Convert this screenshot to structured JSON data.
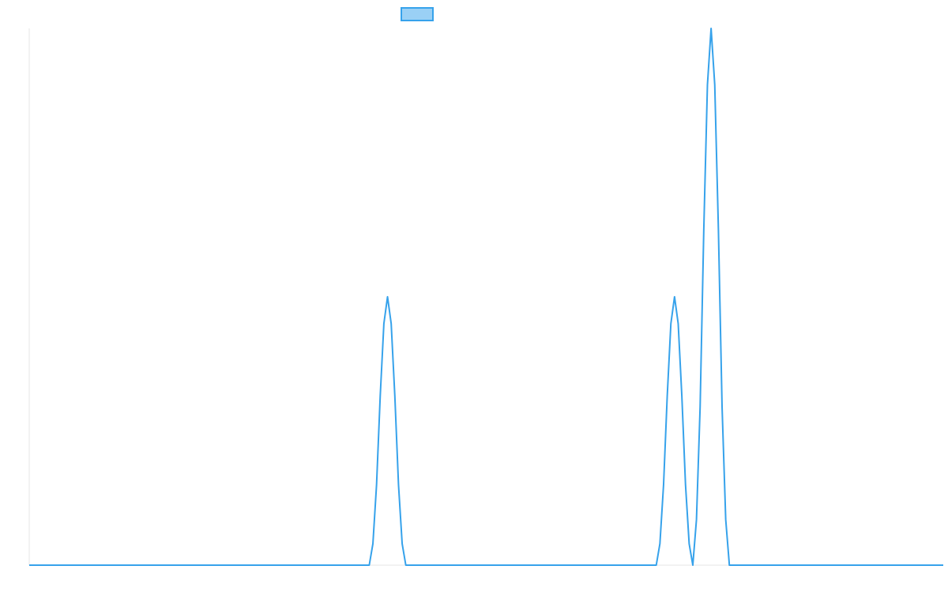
{
  "chart_data": {
    "type": "line",
    "title": "",
    "xlabel": "",
    "ylabel": "",
    "grid": false,
    "legend": {
      "placement": "top-center",
      "entries": [
        {
          "label": "",
          "color": "#36a2eb",
          "fill": "#9ad0f5"
        }
      ]
    },
    "xlim": [
      0,
      100
    ],
    "ylim": [
      0,
      2
    ],
    "series": [
      {
        "color": "#36a2eb",
        "x": [
          0,
          37.2,
          37.6,
          38.0,
          38.4,
          38.8,
          39.2,
          39.6,
          40.0,
          40.4,
          40.8,
          41.2,
          68.6,
          69.0,
          69.4,
          69.8,
          70.2,
          70.6,
          71.0,
          71.4,
          71.8,
          72.2,
          72.6,
          73.0,
          73.4,
          73.8,
          74.2,
          74.6,
          75.0,
          75.4,
          75.8,
          76.2,
          76.6,
          77.0,
          77.4,
          77.8,
          78.2,
          78.6,
          79.0,
          100
        ],
        "y": [
          0,
          0,
          0.08,
          0.3,
          0.63,
          0.9,
          1.0,
          0.9,
          0.63,
          0.3,
          0.08,
          0,
          0,
          0.08,
          0.3,
          0.63,
          0.9,
          1.0,
          0.9,
          0.63,
          0.3,
          0.08,
          0,
          0.17,
          0.59,
          1.25,
          1.79,
          2.0,
          1.79,
          1.25,
          0.59,
          0.17,
          0,
          0,
          0,
          0,
          0,
          0,
          0,
          0
        ]
      }
    ]
  }
}
